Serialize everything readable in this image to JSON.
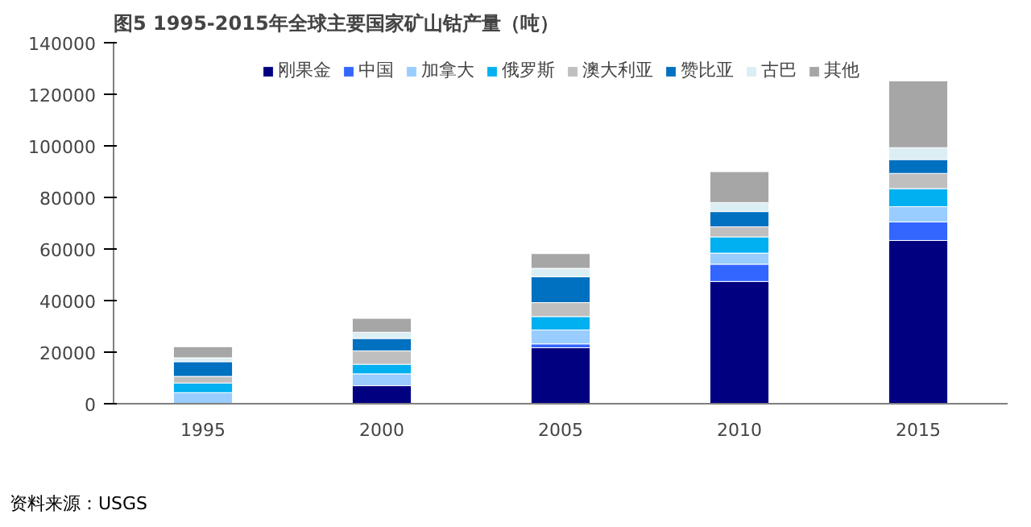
{
  "chart_data": {
    "type": "bar",
    "stacked": true,
    "title": "图5 1995-2015年全球主要国家矿山钴产量（吨）",
    "categories": [
      "1995",
      "2000",
      "2005",
      "2010",
      "2015"
    ],
    "series": [
      {
        "name": "刚果金",
        "color": "#000080",
        "values": [
          0,
          7000,
          21700,
          47400,
          63300
        ]
      },
      {
        "name": "中国",
        "color": "#3366ff",
        "values": [
          0,
          null,
          1500,
          6700,
          7200
        ]
      },
      {
        "name": "加拿大",
        "color": "#99ccff",
        "values": [
          4300,
          4600,
          5400,
          4300,
          5900
        ]
      },
      {
        "name": "俄罗斯",
        "color": "#00b0f0",
        "values": [
          3700,
          3700,
          5200,
          6300,
          7000
        ]
      },
      {
        "name": "澳大利亚",
        "color": "#bfbfbf",
        "values": [
          2600,
          5200,
          5400,
          3900,
          5900
        ]
      },
      {
        "name": "赞比亚",
        "color": "#0070c0",
        "values": [
          5700,
          4800,
          10000,
          5900,
          5400
        ]
      },
      {
        "name": "古巴",
        "color": "#dbeef4",
        "values": [
          1500,
          2400,
          3300,
          3500,
          4600
        ]
      },
      {
        "name": "其他",
        "color": "#a6a6a6",
        "values": [
          4300,
          5400,
          5700,
          12000,
          25900
        ]
      }
    ],
    "ylim": [
      0,
      140000
    ],
    "yticks": [
      0,
      20000,
      40000,
      60000,
      80000,
      100000,
      120000,
      140000
    ],
    "grid": false,
    "legend": "top",
    "annotations": [
      "资料来源：USGS"
    ]
  }
}
